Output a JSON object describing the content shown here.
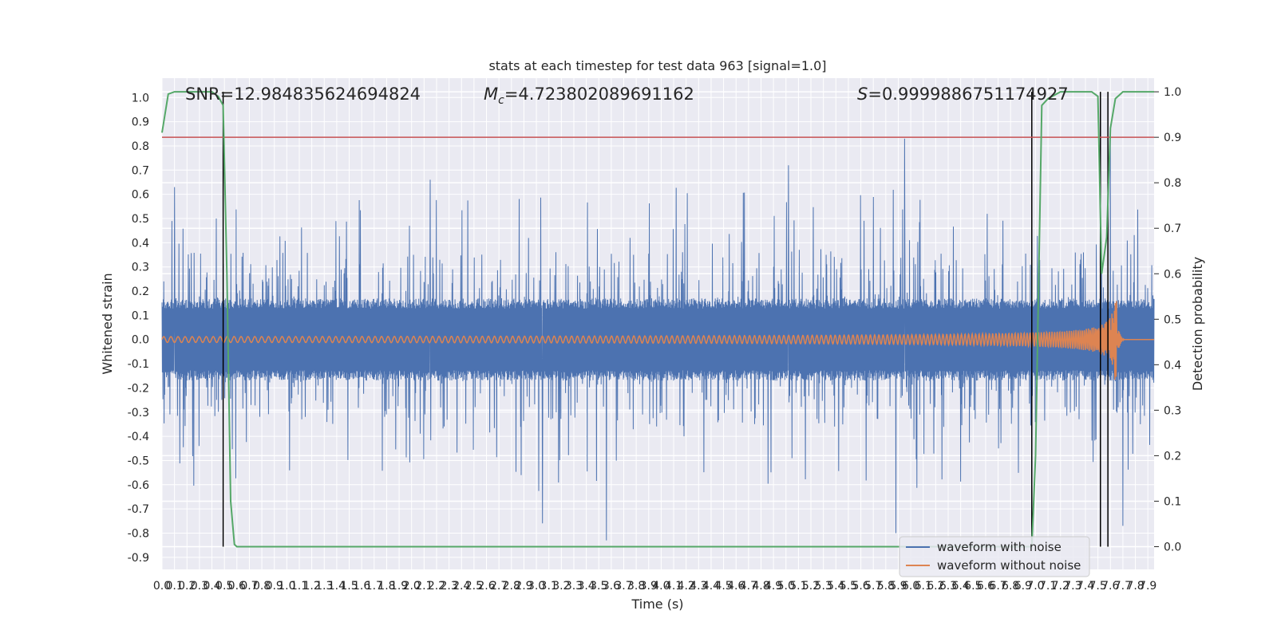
{
  "chart_data": {
    "type": "line",
    "title": "stats at each timestep for test data 963 [signal=1.0]",
    "xlabel": "Time (s)",
    "ylabel": "Whitened strain",
    "y2label": "Detection probability",
    "xlim": [
      0.0,
      7.95
    ],
    "ylim": [
      -0.95,
      1.08
    ],
    "y2lim": [
      -0.05,
      1.03
    ],
    "x_ticks": [
      "0.0",
      "0.1",
      "0.2",
      "0.3",
      "0.4",
      "0.5",
      "0.6",
      "0.7",
      "0.8",
      "0.9",
      "1.0",
      "1.1",
      "1.2",
      "1.3",
      "1.4",
      "1.5",
      "1.6",
      "1.7",
      "1.8",
      "1.9",
      "2.0",
      "2.1",
      "2.2",
      "2.3",
      "2.4",
      "2.5",
      "2.6",
      "2.7",
      "2.8",
      "2.9",
      "3.0",
      "3.1",
      "3.2",
      "3.3",
      "3.4",
      "3.5",
      "3.6",
      "3.7",
      "3.8",
      "3.9",
      "4.0",
      "4.1",
      "4.2",
      "4.3",
      "4.4",
      "4.5",
      "4.6",
      "4.7",
      "4.8",
      "4.9",
      "5.0",
      "5.1",
      "5.2",
      "5.3",
      "5.4",
      "5.5",
      "5.6",
      "5.7",
      "5.8",
      "5.9",
      "6.0",
      "6.1",
      "6.2",
      "6.3",
      "6.4",
      "6.5",
      "6.6",
      "6.7",
      "6.8",
      "6.9",
      "7.0",
      "7.1",
      "7.2",
      "7.3",
      "7.4",
      "7.5",
      "7.6",
      "7.7",
      "7.8",
      "7.9"
    ],
    "y_ticks": [
      "1.0",
      "0.9",
      "0.8",
      "0.7",
      "0.6",
      "0.5",
      "0.4",
      "0.3",
      "0.2",
      "0.1",
      "0.0",
      "-0.1",
      "-0.2",
      "-0.3",
      "-0.4",
      "-0.5",
      "-0.6",
      "-0.7",
      "-0.8",
      "-0.9"
    ],
    "y2_ticks": [
      "1.0",
      "0.9",
      "0.8",
      "0.7",
      "0.6",
      "0.5",
      "0.4",
      "0.3",
      "0.2",
      "0.1",
      "0.0"
    ],
    "annotations": {
      "snr": "SNR=12.984835624694824",
      "mc_symbol": "M",
      "mc_sub": "c",
      "mc_value": "=4.723802089691162",
      "s_symbol": "S",
      "s_value": "=0.9999886751174927"
    },
    "legend": [
      "waveform with noise",
      "waveform without noise"
    ],
    "legend_position": "lower-right",
    "colors": {
      "noise": "#4c72b0",
      "clean": "#dd8452",
      "probability": "#55a868",
      "threshold": "#c44e52",
      "vlines": "#000000",
      "background": "#eaeaf2",
      "grid": "#ffffff"
    },
    "threshold": 0.9,
    "vlines": [
      0.49,
      6.97,
      7.52,
      7.58
    ],
    "probability": {
      "x": [
        0.0,
        0.05,
        0.1,
        0.2,
        0.3,
        0.4,
        0.45,
        0.49,
        0.52,
        0.55,
        0.58,
        0.6,
        0.7,
        1.0,
        2.0,
        3.0,
        4.0,
        5.0,
        6.0,
        6.9,
        6.97,
        7.0,
        7.05,
        7.1,
        7.2,
        7.3,
        7.4,
        7.45,
        7.5,
        7.53,
        7.57,
        7.6,
        7.64,
        7.68,
        7.7,
        7.75,
        7.8,
        7.95
      ],
      "y": [
        0.91,
        0.995,
        1.0,
        1.0,
        1.0,
        1.0,
        0.99,
        0.97,
        0.6,
        0.1,
        0.005,
        0.0,
        0.0,
        0.0,
        0.0,
        0.0,
        0.0,
        0.0,
        0.0,
        0.0,
        0.0,
        0.2,
        0.97,
        0.985,
        1.0,
        1.0,
        1.0,
        1.0,
        0.99,
        0.6,
        0.68,
        0.92,
        0.985,
        0.995,
        1.0,
        1.0,
        1.0,
        1.0
      ]
    },
    "clean_waveform": {
      "start_x": 0.0,
      "merger_x": 7.65,
      "end_x": 7.95,
      "amplitude_start": 0.012,
      "amplitude_peak": 0.25,
      "ringdown_value": 0.0
    },
    "noise_waveform": {
      "band_amplitude": 0.17,
      "typical_peak": 0.33,
      "extreme_peaks": [
        {
          "x": 5.95,
          "y": 0.83
        },
        {
          "x": 3.56,
          "y": -0.83
        },
        {
          "x": 5.88,
          "y": -0.8
        },
        {
          "x": 6.97,
          "y": -0.8
        },
        {
          "x": 7.6,
          "y": 0.87
        },
        {
          "x": 0.1,
          "y": 0.63
        },
        {
          "x": 3.05,
          "y": -0.76
        },
        {
          "x": 2.15,
          "y": 0.66
        },
        {
          "x": 5.02,
          "y": 0.72
        },
        {
          "x": 7.7,
          "y": -0.77
        }
      ]
    }
  }
}
